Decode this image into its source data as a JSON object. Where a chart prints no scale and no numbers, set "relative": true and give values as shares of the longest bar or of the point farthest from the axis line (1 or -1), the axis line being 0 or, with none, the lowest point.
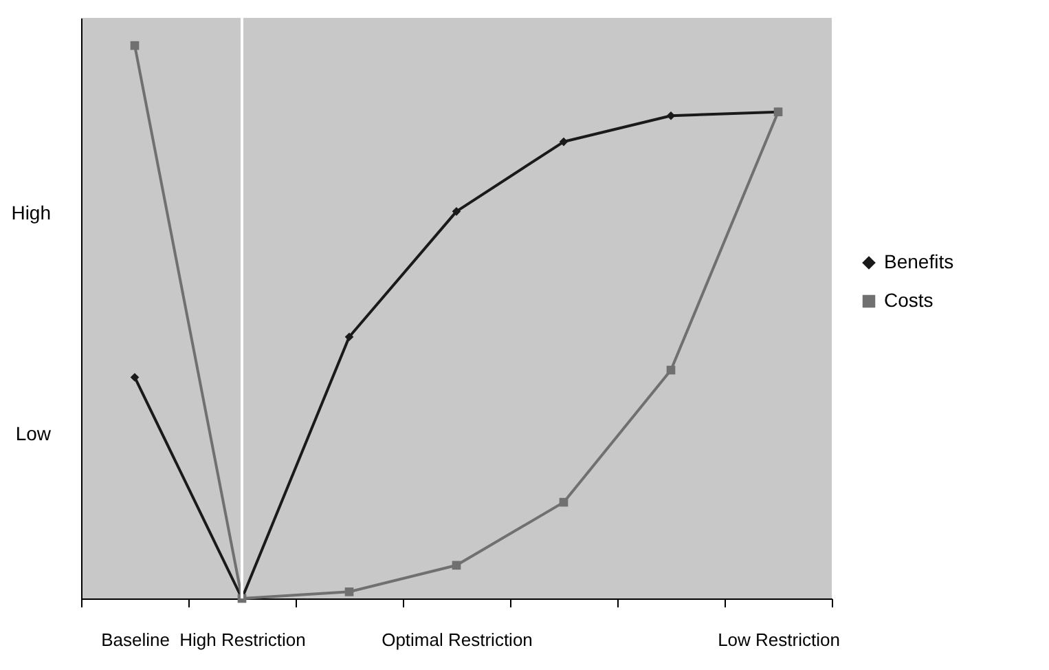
{
  "chart_data": {
    "type": "line",
    "relative": true,
    "categories": [
      "Baseline",
      "High Restriction",
      null,
      "Optimal Restriction",
      null,
      null,
      "Low Restriction"
    ],
    "series": [
      {
        "name": "Benefits",
        "color": "#1a1a1a",
        "marker": "diamond",
        "values": [
          0.4,
          0,
          0.473,
          0.7,
          0.826,
          0.873,
          0.88
        ]
      },
      {
        "name": "Costs",
        "color": "#707070",
        "marker": "square",
        "values": [
          1,
          0,
          0.012,
          0.06,
          0.174,
          0.413,
          0.88
        ]
      }
    ],
    "annotations": [
      "High",
      "Low"
    ],
    "ref_lines": [
      {
        "axis": "x",
        "value": "High Restriction",
        "color": "#ffffff"
      }
    ],
    "legend": "right",
    "line_style": "solid"
  }
}
